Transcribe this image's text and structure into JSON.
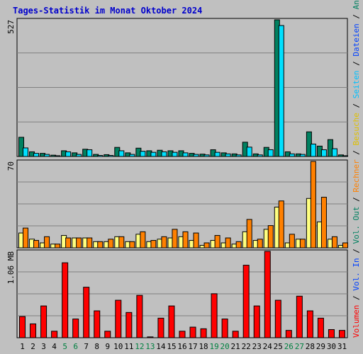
{
  "chart_data": {
    "type": "bar",
    "title": "Tages-Statistik im Monat Oktober 2024",
    "days": [
      "1",
      "2",
      "3",
      "4",
      "5",
      "6",
      "7",
      "8",
      "9",
      "10",
      "11",
      "12",
      "13",
      "14",
      "15",
      "16",
      "17",
      "18",
      "19",
      "20",
      "21",
      "22",
      "23",
      "24",
      "25",
      "26",
      "27",
      "28",
      "29",
      "30",
      "31"
    ],
    "weekend_days": [
      "5",
      "6",
      "12",
      "13",
      "19",
      "20",
      "26",
      "27"
    ],
    "colors": {
      "background": "#c0c0c0",
      "title": "#0000cc",
      "anfragen": "#008060",
      "dateien": "#00c0ff",
      "seiten": "#00e0ff",
      "besuche": "#ffff80",
      "rechner": "#ff8000",
      "volumen": "#ff0000",
      "weekend_label": "#008040"
    },
    "panels": [
      {
        "id": "hits",
        "ymax_label": "527",
        "ymax": 527,
        "series": [
          {
            "name": "Anfragen",
            "values": [
              74,
              18,
              12,
              5,
              22,
              14,
              28,
              8,
              7,
              35,
              14,
              32,
              22,
              24,
              22,
              22,
              12,
              9,
              26,
              14,
              10,
              55,
              10,
              35,
              527,
              18,
              10,
              95,
              40,
              65,
              6
            ]
          },
          {
            "name": "Dateien",
            "values": [
              33,
              12,
              8,
              3,
              18,
              8,
              26,
              4,
              4,
              22,
              8,
              20,
              16,
              18,
              16,
              14,
              8,
              6,
              16,
              10,
              6,
              36,
              6,
              26,
              505,
              10,
              8,
              48,
              26,
              30,
              3
            ]
          }
        ]
      },
      {
        "id": "visits",
        "ymax_label": "70",
        "ymax": 70,
        "series": [
          {
            "name": "Besuche",
            "values": [
              12,
              7,
              4,
              3,
              10,
              8,
              8,
              5,
              5,
              9,
              5,
              11,
              5,
              7,
              8,
              9,
              6,
              2,
              6,
              4,
              3,
              13,
              6,
              15,
              33,
              4,
              7,
              40,
              21,
              7,
              2
            ]
          },
          {
            "name": "Rechner",
            "values": [
              16,
              6,
              9,
              3,
              8,
              8,
              8,
              5,
              7,
              9,
              5,
              13,
              6,
              9,
              15,
              13,
              12,
              4,
              10,
              8,
              5,
              23,
              7,
              18,
              38,
              11,
              7,
              70,
              41,
              9,
              4
            ]
          }
        ]
      },
      {
        "id": "volume",
        "ymax_label": "1.06 MB",
        "ymax": 1.06,
        "series": [
          {
            "name": "Volumen",
            "values": [
              0.26,
              0.17,
              0.39,
              0.08,
              0.92,
              0.23,
              0.62,
              0.33,
              0.08,
              0.46,
              0.31,
              0.52,
              0.01,
              0.24,
              0.39,
              0.08,
              0.13,
              0.11,
              0.54,
              0.23,
              0.08,
              0.89,
              0.39,
              1.06,
              0.46,
              0.09,
              0.51,
              0.33,
              0.24,
              0.1,
              0.09
            ]
          }
        ]
      }
    ],
    "legends": [
      {
        "text": "Anfragen",
        "color": "#008060"
      },
      {
        "text": " / ",
        "color": "#000000"
      },
      {
        "text": "Dateien",
        "color": "#0040ff"
      },
      {
        "text": " / ",
        "color": "#000000"
      },
      {
        "text": "Seiten",
        "color": "#00c0ff"
      },
      {
        "text": " / ",
        "color": "#000000"
      },
      {
        "text": "Besuche",
        "color": "#e0c000"
      },
      {
        "text": " / ",
        "color": "#000000"
      },
      {
        "text": "Rechner",
        "color": "#ff8000"
      },
      {
        "text": " / ",
        "color": "#000000"
      },
      {
        "text": "Vol. Out",
        "color": "#008060"
      },
      {
        "text": " / ",
        "color": "#000000"
      },
      {
        "text": "Vol. In",
        "color": "#0040ff"
      },
      {
        "text": " / ",
        "color": "#000000"
      },
      {
        "text": "Volumen",
        "color": "#ff0000"
      }
    ]
  }
}
